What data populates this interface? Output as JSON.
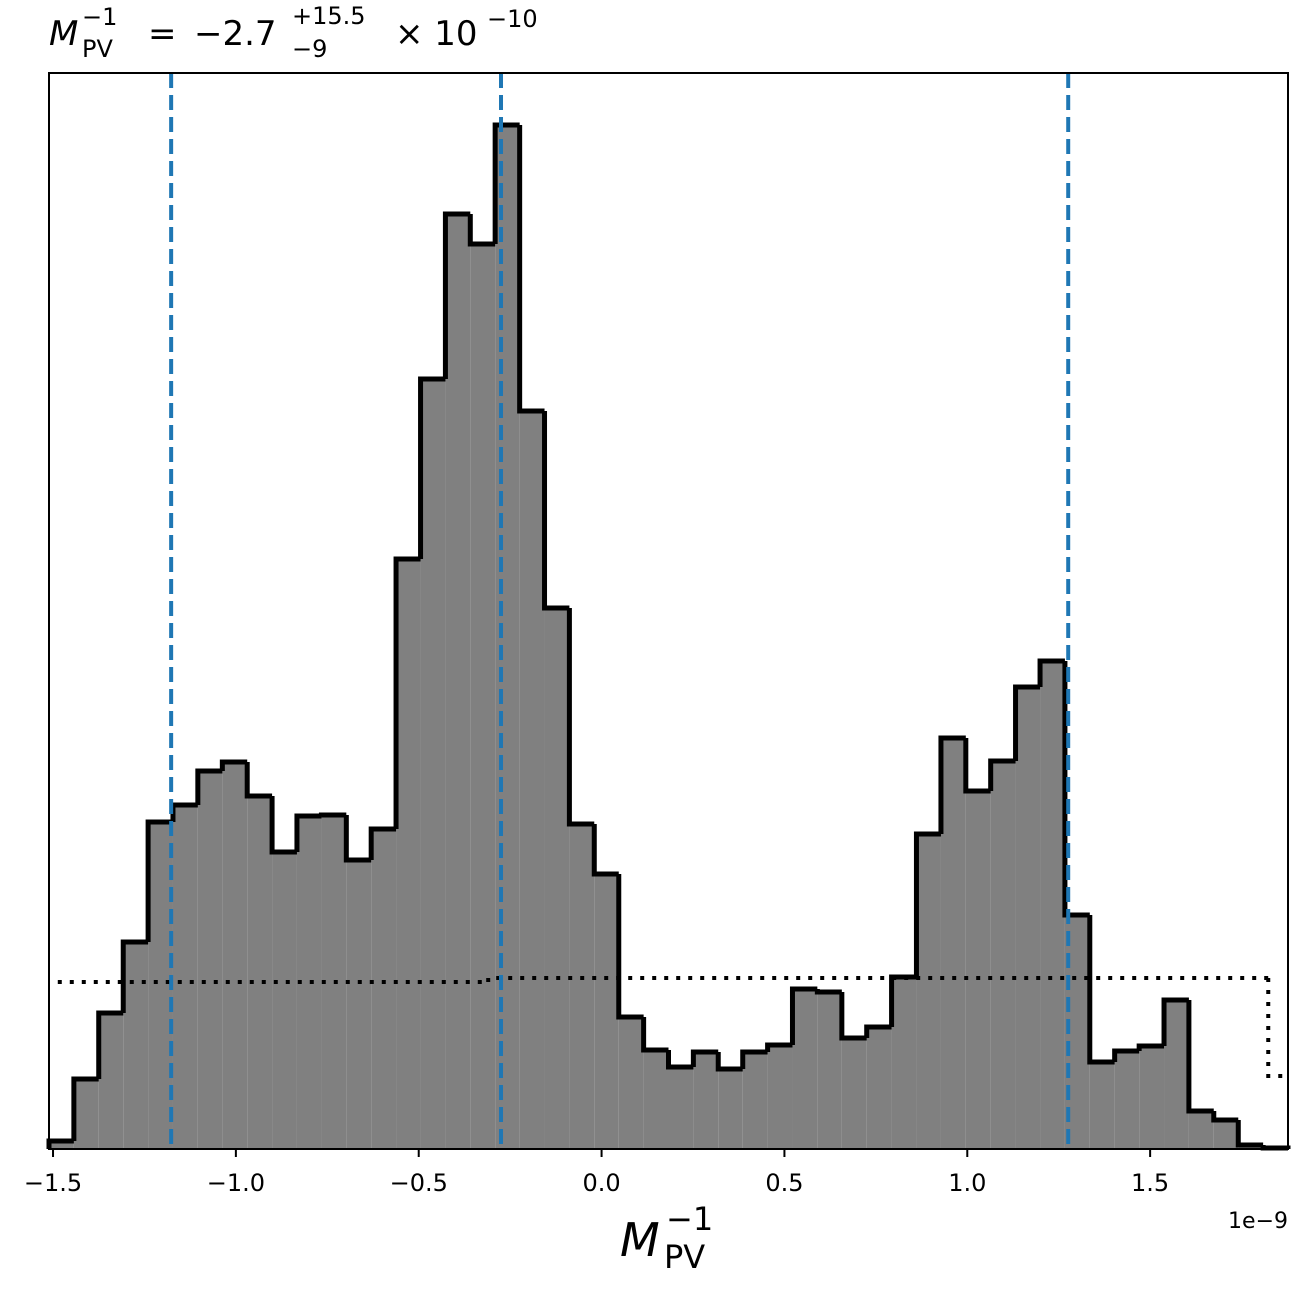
{
  "chart_data": {
    "type": "histogram",
    "title": {
      "symbol": "M",
      "subscript": "PV",
      "superscript": "−1",
      "equals": "=",
      "median": "−2.7",
      "plus": "+15.5",
      "minus": "−9",
      "times": "× 10",
      "exponent": "−10"
    },
    "xlabel": {
      "symbol": "M",
      "subscript": "PV",
      "superscript": "−1"
    },
    "x_offset_label": "1e−9",
    "bins": [
      -1.511,
      -1.443,
      -1.375,
      -1.308,
      -1.24,
      -1.172,
      -1.104,
      -1.037,
      -0.969,
      -0.901,
      -0.833,
      -0.766,
      -0.698,
      -0.63,
      -0.562,
      -0.495,
      -0.427,
      -0.359,
      -0.291,
      -0.224,
      -0.156,
      -0.088,
      -0.02,
      0.047,
      0.115,
      0.183,
      0.251,
      0.319,
      0.386,
      0.454,
      0.522,
      0.59,
      0.657,
      0.725,
      0.793,
      0.861,
      0.928,
      0.996,
      1.064,
      1.132,
      1.199,
      1.267,
      1.335,
      1.403,
      1.47,
      1.538,
      1.606,
      1.674,
      1.741,
      1.809,
      1.877
    ],
    "values": [
      8,
      70,
      136,
      207,
      327,
      344,
      378,
      387,
      353,
      297,
      333,
      334,
      289,
      320,
      590,
      770,
      935,
      905,
      1024,
      738,
      541,
      325,
      275,
      132,
      99,
      82,
      97,
      80,
      97,
      104,
      160,
      157,
      111,
      122,
      172,
      315,
      411,
      358,
      388,
      462,
      488,
      234,
      87,
      98,
      103,
      149,
      38,
      29,
      4,
      1
    ],
    "color": "#808080",
    "edge_color": "#000000",
    "prior": {
      "bins": [
        -1.487,
        -0.31,
        1.823,
        1.877
      ],
      "values": [
        167,
        171,
        73
      ],
      "color": "#000000"
    },
    "quantiles": [
      -1.177,
      -0.275,
      1.276
    ],
    "quantile_color": "#1f77b4",
    "xlim": [
      -1.511,
      1.877
    ],
    "ylim": [
      0,
      1076
    ],
    "xticks": [
      {
        "value": -1.5,
        "label": "−1.5"
      },
      {
        "value": -1,
        "label": "−1.0"
      },
      {
        "value": -0.5,
        "label": "−0.5"
      },
      {
        "value": 0,
        "label": "0.0"
      },
      0.5,
      {
        "value": 1,
        "label": "1.0"
      },
      1.5
    ]
  }
}
